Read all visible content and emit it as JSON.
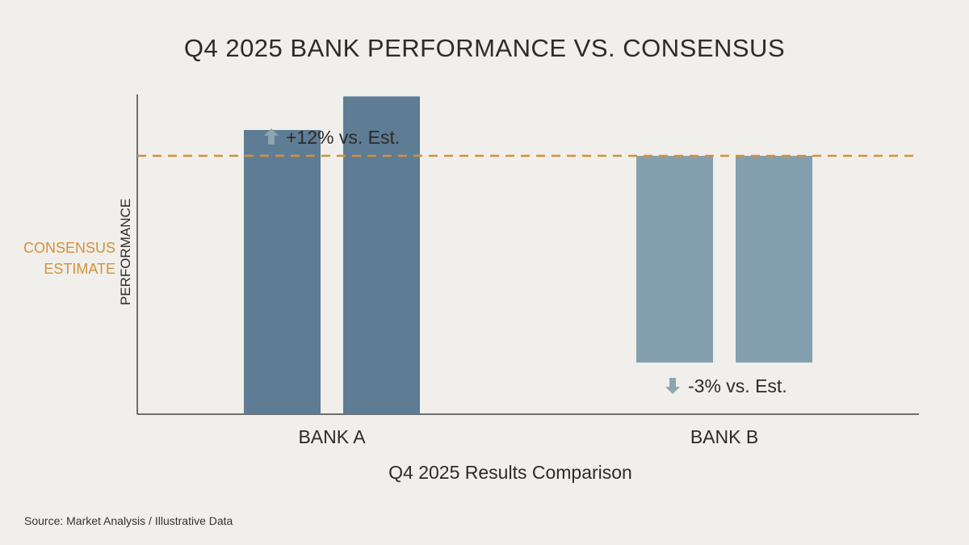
{
  "chart_data": {
    "type": "bar",
    "title": "Q4 2025 BANK PERFORMANCE VS. CONSENSUS",
    "xlabel": "Q4 2025 Results Comparison",
    "ylabel": "PERFORMANCE",
    "categories": [
      "BANK A",
      "BANK B"
    ],
    "series": [
      {
        "values": [
          110,
          63
        ]
      },
      {
        "values": [
          123,
          63
        ]
      }
    ],
    "ylim": [
      0,
      125
    ],
    "grid": false,
    "reference_line": {
      "label_lines": [
        "CONSENSUS",
        "ESTIMATE"
      ],
      "value": 100,
      "style": "dashed",
      "color": "#d4913a"
    },
    "annotations": [
      {
        "category": "BANK A",
        "direction": "up",
        "text": "+12% vs. Est."
      },
      {
        "category": "BANK B",
        "direction": "down",
        "text": "-3% vs. Est."
      }
    ],
    "colors": {
      "bank_a": "#5e7c93",
      "bank_b": "#849fae",
      "arrow": "#8da4b3",
      "axis": "#444444",
      "reference": "#d4913a"
    }
  },
  "source": "Source: Market Analysis / Illustrative Data"
}
